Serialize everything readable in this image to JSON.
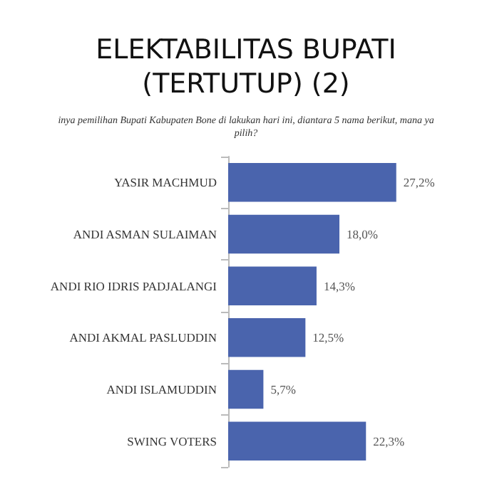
{
  "chart_data": {
    "type": "bar",
    "orientation": "horizontal",
    "title": "ELEKTABILITAS BUPATI\n(TERTUTUP) (2)",
    "subtitle": "inya pemilihan Bupati Kabupaten Bone di lakukan hari ini, diantara 5 nama berikut, mana ya\npilih?",
    "categories": [
      "YASIR MACHMUD",
      "ANDI ASMAN SULAIMAN",
      "ANDI RIO IDRIS PADJALANGI",
      "ANDI AKMAL PASLUDDIN",
      "ANDI ISLAMUDDIN",
      "SWING VOTERS"
    ],
    "values": [
      27.2,
      18.0,
      14.3,
      12.5,
      5.7,
      22.3
    ],
    "value_labels": [
      "27,2%",
      "18,0%",
      "14,3%",
      "12,5%",
      "5,7%",
      "22,3%"
    ],
    "color": "#4a64ad"
  }
}
